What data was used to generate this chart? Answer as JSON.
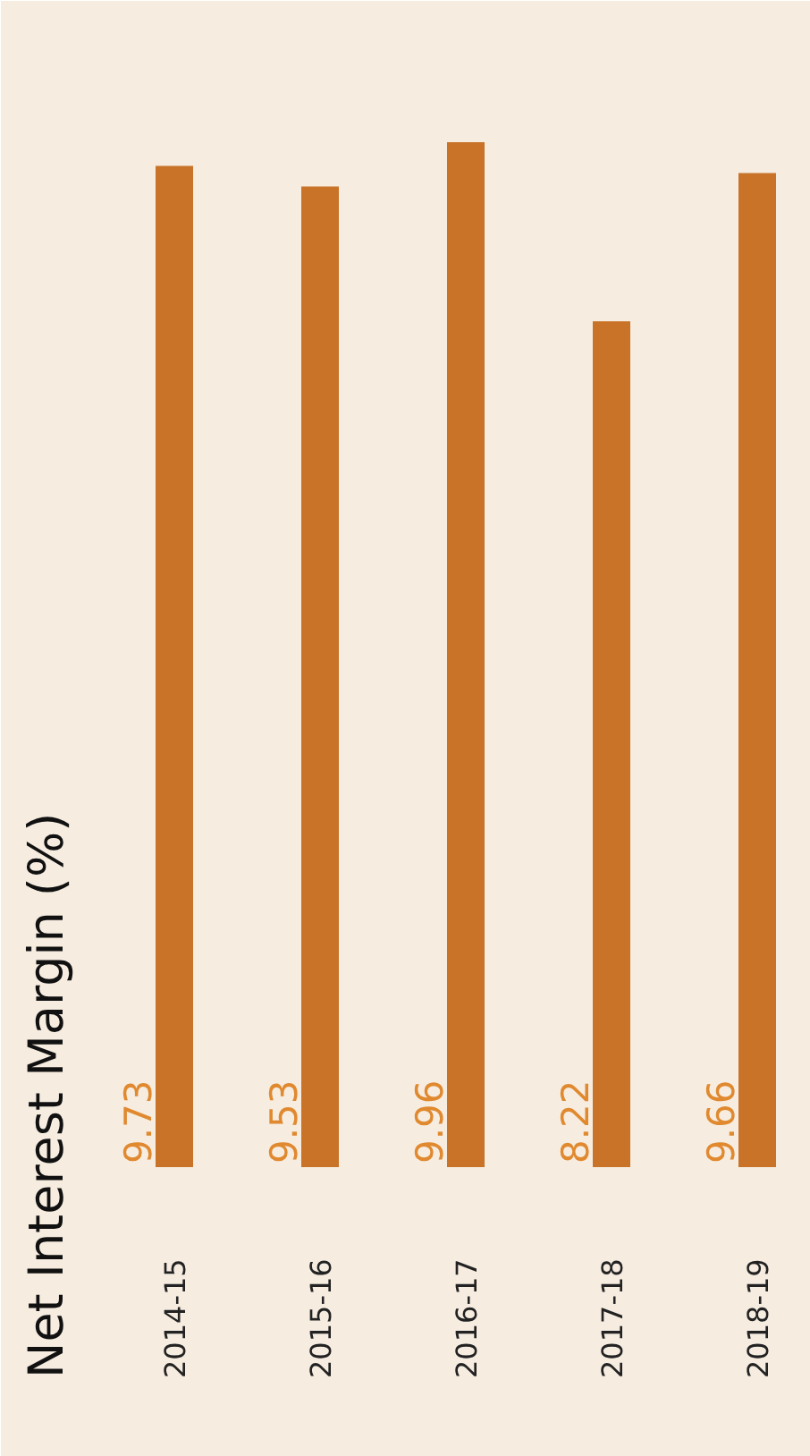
{
  "chart_data": {
    "type": "bar",
    "ylabel": "Net Interest Margin (%)",
    "categories": [
      "2014-15",
      "2015-16",
      "2016-17",
      "2017-18",
      "2018-19"
    ],
    "values": [
      9.73,
      9.53,
      9.96,
      8.22,
      9.66
    ],
    "color": "#c87327",
    "data_labels": true
  }
}
